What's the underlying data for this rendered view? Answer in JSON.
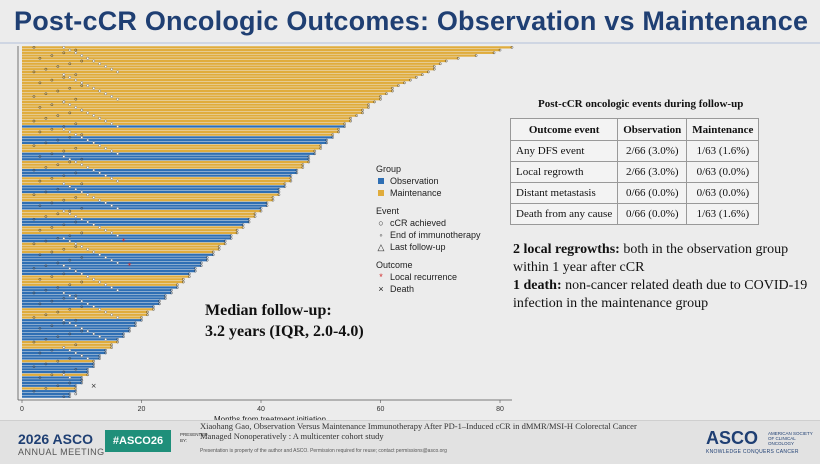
{
  "slide": {
    "title": "Post-cCR Oncologic Outcomes: Observation vs Maintenance"
  },
  "chart": {
    "xlabel": "Months from treatment initiation",
    "x_ticks": [
      "0",
      "20",
      "40",
      "60",
      "80"
    ],
    "legend": {
      "group_header": "Group",
      "group_items": [
        {
          "label": "Observation",
          "color": "#2f6fb4"
        },
        {
          "label": "Maintenance",
          "color": "#e0ac3c"
        }
      ],
      "event_header": "Event",
      "event_items": [
        {
          "label": "cCR achieved",
          "icon": "open-circle-icon"
        },
        {
          "label": "End of immunotherapy",
          "icon": "small-circle-icon"
        },
        {
          "label": "Last follow-up",
          "icon": "triangle-icon"
        }
      ],
      "outcome_header": "Outcome",
      "outcome_items": [
        {
          "label": "Local recurrence",
          "icon": "star-icon",
          "color": "#d12b2b"
        },
        {
          "label": "Death",
          "icon": "cross-icon",
          "color": "#222222"
        }
      ]
    }
  },
  "chart_data": {
    "type": "bar",
    "orientation": "horizontal",
    "xlabel": "Months from treatment initiation",
    "xlim": [
      0,
      84
    ],
    "n_patients": 129,
    "series": [
      {
        "name": "Observation",
        "n": 66
      },
      {
        "name": "Maintenance",
        "n": 63
      }
    ],
    "followup_months_sorted_desc": [
      82,
      80,
      79,
      76,
      73,
      71,
      70,
      69,
      69,
      68,
      67,
      66,
      65,
      64,
      63,
      62,
      62,
      61,
      60,
      60,
      59,
      58,
      58,
      57,
      57,
      56,
      55,
      55,
      54,
      54,
      53,
      53,
      52,
      52,
      51,
      51,
      50,
      50,
      49,
      49,
      48,
      48,
      48,
      47,
      47,
      46,
      46,
      45,
      45,
      45,
      44,
      44,
      43,
      43,
      43,
      42,
      42,
      41,
      41,
      40,
      40,
      39,
      39,
      38,
      38,
      37,
      37,
      36,
      36,
      35,
      35,
      34,
      34,
      33,
      33,
      32,
      32,
      31,
      31,
      30,
      30,
      29,
      29,
      28,
      28,
      27,
      27,
      26,
      26,
      25,
      25,
      24,
      24,
      23,
      23,
      22,
      22,
      21,
      21,
      20,
      20,
      19,
      19,
      18,
      18,
      17,
      17,
      16,
      16,
      15,
      15,
      14,
      14,
      13,
      13,
      12,
      12,
      12,
      11,
      11,
      11,
      10,
      10,
      10,
      9,
      9,
      9,
      8,
      8
    ],
    "group_pattern_top_to_bottom": "M: rows 1-30, mixed 31-60, O/M alternating bands, O dominant lower rows",
    "local_recurrence_months": [
      17,
      18
    ],
    "death_months": [
      12
    ]
  },
  "median": {
    "line1": "Median follow-up:",
    "line2": "3.2 years (IQR, 2.0-4.0)"
  },
  "events_table": {
    "title": "Post-cCR oncologic events during follow-up",
    "headers": [
      "Outcome event",
      "Observation",
      "Maintenance"
    ],
    "rows": [
      [
        "Any DFS event",
        "2/66 (3.0%)",
        "1/63 (1.6%)"
      ],
      [
        "Local regrowth",
        "2/66 (3.0%)",
        "0/63 (0.0%)"
      ],
      [
        "Distant metastasis",
        "0/66 (0.0%)",
        "0/63 (0.0%)"
      ],
      [
        "Death from any cause",
        "0/66 (0.0%)",
        "1/63 (1.6%)"
      ]
    ]
  },
  "notes": {
    "n1_bold": "2 local regrowths:",
    "n1_rest": " both in the observation group within 1 year after cCR",
    "n2_bold": "1 death:",
    "n2_rest": " non-cancer  related death due to COVID-19 infection in the maintenance group"
  },
  "footer": {
    "year": "2026",
    "asco": "ASCO",
    "annual": "ANNUAL MEETING",
    "hashtag": "#ASCO26",
    "presented_by": "PRESENTED BY:",
    "citation": "Xiaohang Gao, Observation Versus Maintenance Immunotherapy After PD-1–Induced cCR in dMMR/MSI-H Colorectal Cancer Managed Nonoperatively :  A multicenter cohort study",
    "permission": "Presentation is property of the author and ASCO. Permission required for reuse; contact permissions@asco.org",
    "asco_right": "ASCO",
    "asco_right_sub": "AMERICAN SOCIETY OF CLINICAL ONCOLOGY",
    "tagline": "KNOWLEDGE CONQUERS CANCER"
  },
  "colors": {
    "title": "#1f3f73",
    "observation": "#2f6fb4",
    "maintenance": "#e0ac3c",
    "recurrence": "#d12b2b"
  }
}
